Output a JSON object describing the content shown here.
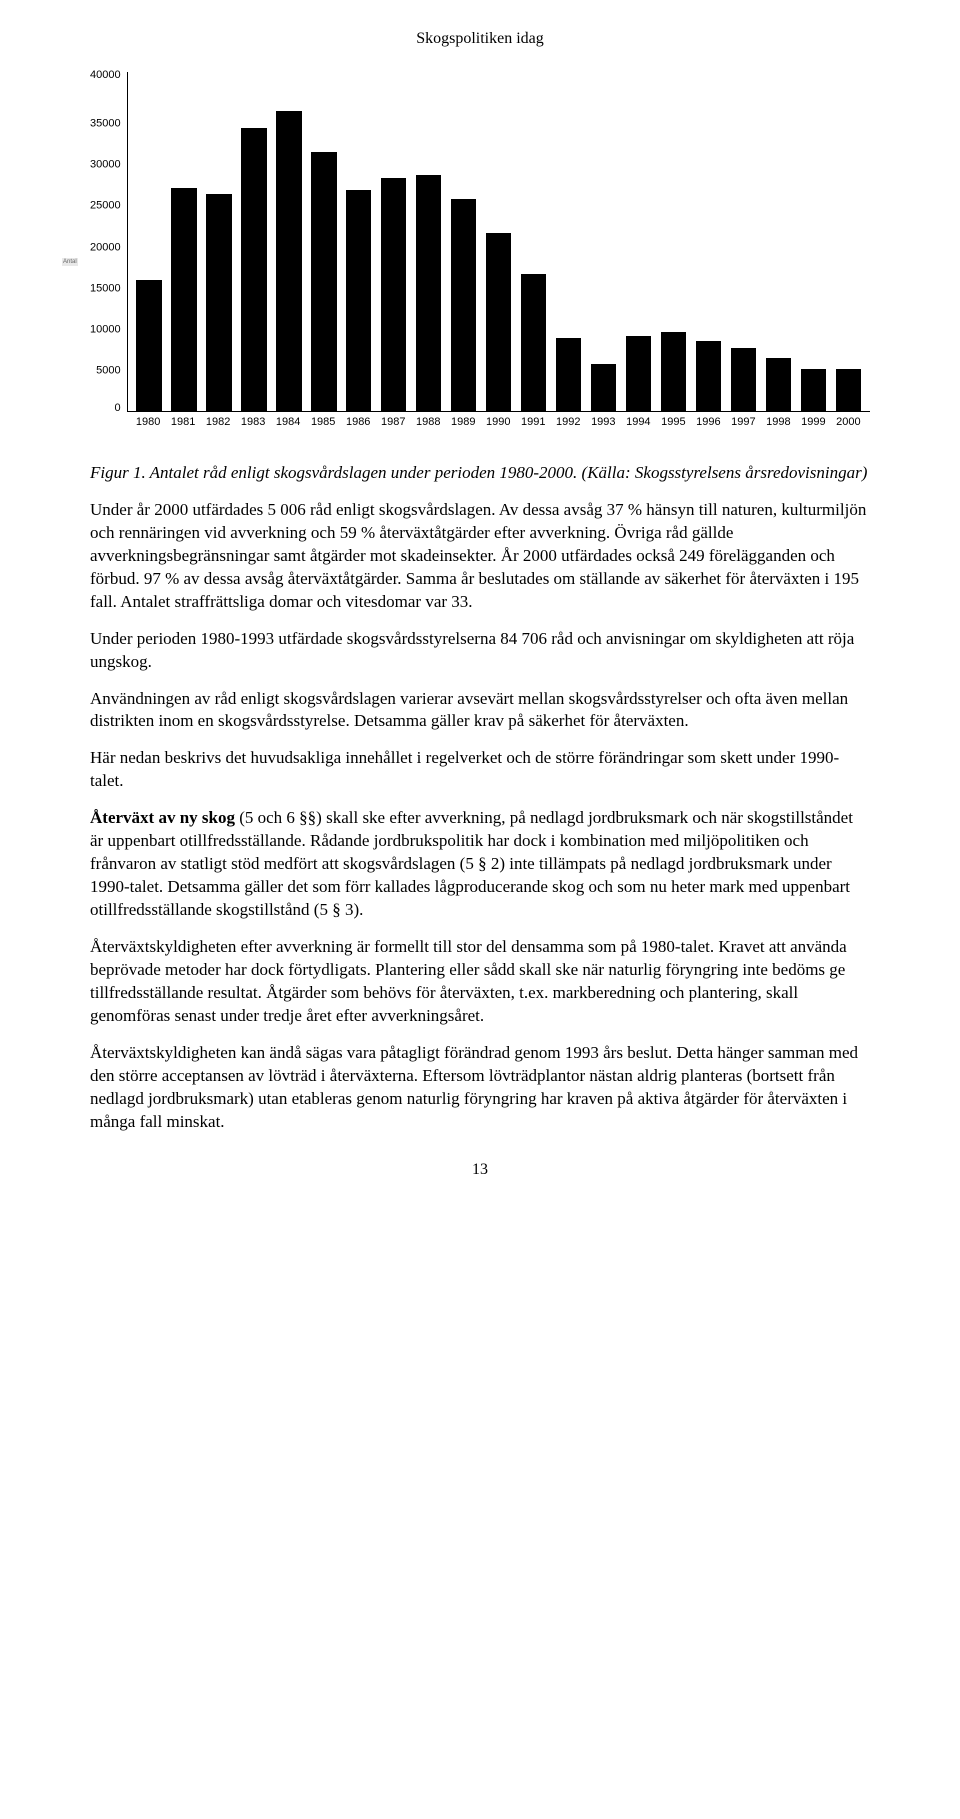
{
  "header": "Skogspolitiken idag",
  "chart": {
    "type": "bar",
    "y_label": "Antal",
    "ylim_max": 40000,
    "yticks": [
      40000,
      35000,
      30000,
      25000,
      20000,
      15000,
      10000,
      5000,
      0
    ],
    "categories": [
      "1980",
      "1981",
      "1982",
      "1983",
      "1984",
      "1985",
      "1986",
      "1987",
      "1988",
      "1989",
      "1990",
      "1991",
      "1992",
      "1993",
      "1994",
      "1995",
      "1996",
      "1997",
      "1998",
      "1999",
      "2000"
    ],
    "values": [
      15500,
      26300,
      25600,
      33400,
      35400,
      30600,
      26100,
      27500,
      27800,
      25000,
      21000,
      16200,
      8600,
      5500,
      8900,
      9300,
      8300,
      7400,
      6200,
      4900,
      5006
    ],
    "bar_color": "#000000",
    "axis_color": "#000000",
    "background_color": "#ffffff",
    "label_fontsize": 11,
    "label_fontfamily": "Arial"
  },
  "caption": "Figur 1. Antalet råd enligt skogsvårdslagen under perioden 1980-2000. (Källa: Skogsstyrelsens årsredovisningar)",
  "paragraphs": [
    {
      "lead": "",
      "text": "Under år 2000 utfärdades 5 006 råd enligt skogsvårdslagen. Av dessa avsåg 37 % hänsyn till naturen, kulturmiljön och rennäringen vid avverkning och 59 % återväxtåtgärder efter avverkning. Övriga råd gällde avverkningsbegränsningar samt åtgärder mot skadeinsekter. År 2000 utfärdades också 249 förelägganden och förbud. 97 % av dessa avsåg återväxtåtgärder. Samma år beslutades om ställande av säkerhet för återväxten i 195 fall. Antalet straffrättsliga domar och vitesdomar var 33."
    },
    {
      "lead": "",
      "text": "Under perioden 1980-1993 utfärdade skogsvårdsstyrelserna 84 706 råd och anvisningar om skyldigheten att röja ungskog."
    },
    {
      "lead": "",
      "text": "Användningen av råd enligt skogsvårdslagen varierar avsevärt mellan skogsvårdsstyrelser och ofta även mellan distrikten inom en skogsvårdsstyrelse. Detsamma gäller krav på säkerhet för återväxten."
    },
    {
      "lead": "",
      "text": "Här nedan beskrivs det huvudsakliga innehållet i regelverket och de större förändringar som skett under 1990-talet."
    },
    {
      "lead": "Återväxt av ny skog",
      "text": " (5 och 6 §§) skall ske efter avverkning, på nedlagd jordbruksmark och när skogstillståndet är uppenbart otillfredsställande. Rådande jordbrukspolitik har dock i kombination med miljöpolitiken och frånvaron av statligt stöd medfört att skogsvårdslagen (5 § 2) inte tillämpats på nedlagd jordbruksmark under 1990-talet. Detsamma gäller det som förr kallades lågproducerande skog och som nu heter mark med uppenbart otillfredsställande skogstillstånd (5 § 3)."
    },
    {
      "lead": "",
      "text": "Återväxtskyldigheten efter avverkning är formellt till stor del densamma som på 1980-talet. Kravet att använda beprövade metoder har dock förtydligats. Plantering eller sådd skall ske när naturlig föryngring inte bedöms ge tillfredsställande resultat. Åtgärder som behövs för återväxten, t.ex. markberedning och plantering, skall genomföras senast under tredje året efter avverkningsåret."
    },
    {
      "lead": "",
      "text": "Återväxtskyldigheten kan ändå sägas vara påtagligt förändrad genom 1993 års beslut. Detta hänger samman med den större acceptansen av lövträd i återväxterna. Eftersom lövträdplantor nästan aldrig planteras (bortsett från nedlagd jordbruksmark) utan etableras genom naturlig föryngring har kraven på aktiva åtgärder för återväxten i många fall minskat."
    }
  ],
  "page_number": "13"
}
